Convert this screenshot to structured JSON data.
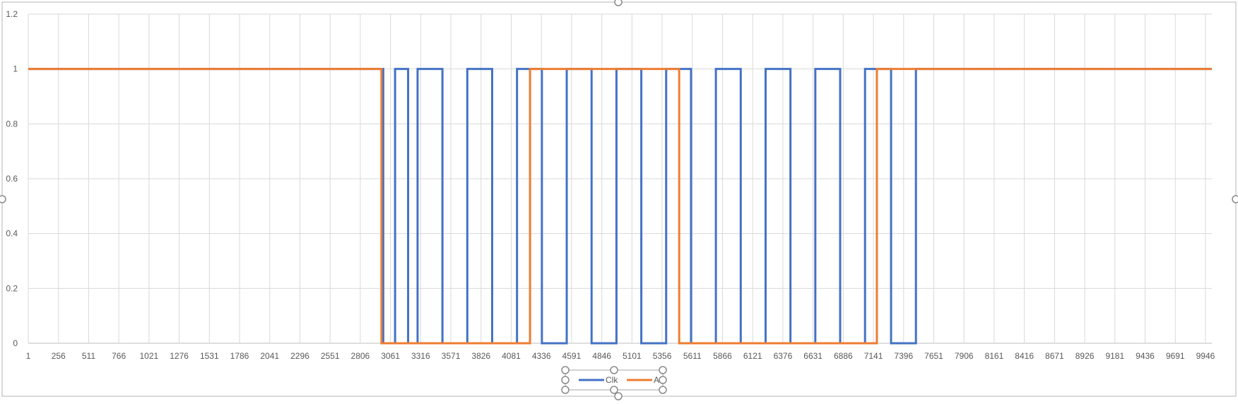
{
  "chart_data": {
    "type": "line",
    "title": "",
    "xlabel": "",
    "ylabel": "",
    "xlim": [
      1,
      10000
    ],
    "ylim": [
      0,
      1.2
    ],
    "y_ticks": [
      "0",
      "0.2",
      "0.4",
      "0.6",
      "0.8",
      "1",
      "1.2"
    ],
    "x_ticks": [
      "1",
      "256",
      "511",
      "766",
      "1021",
      "1276",
      "1531",
      "1786",
      "2041",
      "2296",
      "2551",
      "2806",
      "3061",
      "3316",
      "3571",
      "3826",
      "4081",
      "4336",
      "4591",
      "4846",
      "5101",
      "5356",
      "5611",
      "5866",
      "6121",
      "6376",
      "6631",
      "6886",
      "7141",
      "7396",
      "7651",
      "7906",
      "8161",
      "8416",
      "8671",
      "8926",
      "9181",
      "9436",
      "9691",
      "9946"
    ],
    "grid": true,
    "legend_position": "bottom",
    "series": [
      {
        "name": "Clk",
        "color": "#4472C4",
        "points": [
          [
            1,
            1
          ],
          [
            3000,
            1
          ],
          [
            3000,
            0
          ],
          [
            3100,
            0
          ],
          [
            3100,
            1
          ],
          [
            3210,
            1
          ],
          [
            3210,
            0
          ],
          [
            3290,
            0
          ],
          [
            3290,
            1
          ],
          [
            3500,
            1
          ],
          [
            3500,
            0
          ],
          [
            3710,
            0
          ],
          [
            3710,
            1
          ],
          [
            3920,
            1
          ],
          [
            3920,
            0
          ],
          [
            4130,
            0
          ],
          [
            4130,
            1
          ],
          [
            4340,
            1
          ],
          [
            4340,
            0
          ],
          [
            4550,
            0
          ],
          [
            4550,
            1
          ],
          [
            4760,
            1
          ],
          [
            4760,
            0
          ],
          [
            4970,
            0
          ],
          [
            4970,
            1
          ],
          [
            5180,
            1
          ],
          [
            5180,
            0
          ],
          [
            5390,
            0
          ],
          [
            5390,
            1
          ],
          [
            5600,
            1
          ],
          [
            5600,
            0
          ],
          [
            5810,
            0
          ],
          [
            5810,
            1
          ],
          [
            6020,
            1
          ],
          [
            6020,
            0
          ],
          [
            6230,
            0
          ],
          [
            6230,
            1
          ],
          [
            6440,
            1
          ],
          [
            6440,
            0
          ],
          [
            6650,
            0
          ],
          [
            6650,
            1
          ],
          [
            6860,
            1
          ],
          [
            6860,
            0
          ],
          [
            7070,
            0
          ],
          [
            7070,
            1
          ],
          [
            7290,
            1
          ],
          [
            7290,
            0
          ],
          [
            7500,
            0
          ],
          [
            7500,
            1
          ],
          [
            10000,
            1
          ]
        ]
      },
      {
        "name": "A",
        "color": "#ED7D31",
        "points": [
          [
            1,
            1
          ],
          [
            2985,
            1
          ],
          [
            2985,
            0
          ],
          [
            4240,
            0
          ],
          [
            4240,
            1
          ],
          [
            5500,
            1
          ],
          [
            5500,
            0
          ],
          [
            7170,
            0
          ],
          [
            7170,
            1
          ],
          [
            10000,
            1
          ]
        ]
      }
    ]
  }
}
